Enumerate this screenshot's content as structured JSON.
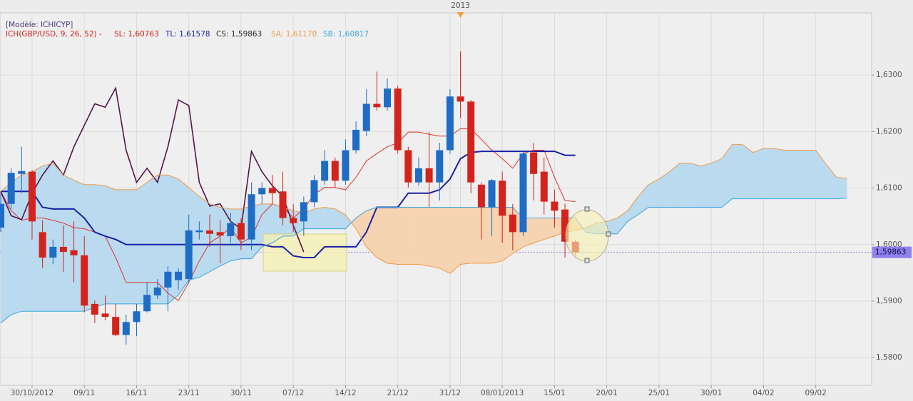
{
  "chart_data": {
    "type": "candlestick",
    "title": "[Modèle: ICHICYP]",
    "indicator": "ICH(GBP/USD, 9, 26, 52) -",
    "year_marker": {
      "value": 44,
      "label": "2013"
    },
    "xlim": [
      -0.07,
      83.35
    ],
    "ylim": [
      1.5751,
      1.641
    ],
    "grid": true,
    "xticks": [
      {
        "value": 3,
        "label": "30/10/2012"
      },
      {
        "value": 8,
        "label": "09/11"
      },
      {
        "value": 13,
        "label": "16/11"
      },
      {
        "value": 18,
        "label": "23/11"
      },
      {
        "value": 23,
        "label": "30/11"
      },
      {
        "value": 28,
        "label": "07/12"
      },
      {
        "value": 33,
        "label": "14/12"
      },
      {
        "value": 38,
        "label": "21/12"
      },
      {
        "value": 43,
        "label": "31/12"
      },
      {
        "value": 48,
        "label": "08/01/2013"
      },
      {
        "value": 53,
        "label": "15/01"
      },
      {
        "value": 58,
        "label": "20/01"
      },
      {
        "value": 63,
        "label": "25/01"
      },
      {
        "value": 68,
        "label": "30/01"
      },
      {
        "value": 73,
        "label": "04/02"
      },
      {
        "value": 78,
        "label": "09/02"
      }
    ],
    "yticks": [
      {
        "value": 1.58,
        "label": "1,5800"
      },
      {
        "value": 1.59,
        "label": "1,5900"
      },
      {
        "value": 1.6,
        "label": "1,6000"
      },
      {
        "value": 1.61,
        "label": "1,6100"
      },
      {
        "value": 1.62,
        "label": "1,6200"
      },
      {
        "value": 1.63,
        "label": "1,6300"
      }
    ],
    "last_price": {
      "value": 1.59863,
      "label": "1,59863",
      "color": "#8f80ee"
    },
    "candles": {
      "up_color": "#1f6cc6",
      "down_color": "#d3231c",
      "open": [
        1.603,
        1.6072,
        1.6125,
        1.6129,
        1.6022,
        1.5977,
        1.5996,
        1.599,
        1.5981,
        1.5895,
        1.5878,
        1.5872,
        1.584,
        1.5863,
        1.5882,
        1.591,
        1.5924,
        1.5937,
        1.5939,
        1.6022,
        1.6025,
        1.6022,
        1.6015,
        1.6038,
        1.6009,
        1.6089,
        1.61,
        1.6094,
        1.6047,
        1.6041,
        1.6075,
        1.6113,
        1.6148,
        1.6113,
        1.6167,
        1.6201,
        1.6249,
        1.6243,
        1.6276,
        1.6167,
        1.611,
        1.6135,
        1.611,
        1.6167,
        1.6262,
        1.6253,
        1.6106,
        1.6066,
        1.6113,
        1.6053,
        1.6022,
        1.6163,
        1.6129,
        1.6076,
        1.6062,
        1.6005
      ],
      "high": [
        1.6091,
        1.6135,
        1.6173,
        1.6132,
        1.6043,
        1.6009,
        1.6034,
        1.6041,
        1.6015,
        1.5901,
        1.591,
        1.5895,
        1.5876,
        1.5895,
        1.5933,
        1.5939,
        1.5962,
        1.5958,
        1.6053,
        1.6041,
        1.6053,
        1.6043,
        1.6056,
        1.6047,
        1.611,
        1.611,
        1.6123,
        1.6129,
        1.6072,
        1.6085,
        1.6123,
        1.6167,
        1.6154,
        1.6186,
        1.6218,
        1.6275,
        1.6306,
        1.6294,
        1.6281,
        1.6173,
        1.6154,
        1.6199,
        1.618,
        1.6275,
        1.6342,
        1.6256,
        1.611,
        1.6116,
        1.6129,
        1.6072,
        1.6167,
        1.618,
        1.6154,
        1.6097,
        1.6072,
        1.6009
      ],
      "low": [
        1.6022,
        1.6063,
        1.6091,
        1.6009,
        1.5958,
        1.5965,
        1.5952,
        1.5933,
        1.588,
        1.5861,
        1.5866,
        1.5838,
        1.5823,
        1.5838,
        1.588,
        1.5904,
        1.5882,
        1.592,
        1.5933,
        1.6009,
        1.5996,
        1.5967,
        1.6003,
        1.599,
        1.599,
        1.6072,
        1.6072,
        1.6034,
        1.6022,
        1.6015,
        1.6066,
        1.6106,
        1.6101,
        1.6106,
        1.6161,
        1.6192,
        1.6237,
        1.6237,
        1.6161,
        1.6101,
        1.6104,
        1.6066,
        1.6078,
        1.6161,
        1.6224,
        1.6091,
        1.6009,
        1.6015,
        1.6003,
        1.599,
        1.6015,
        1.6078,
        1.6053,
        1.603,
        1.5977,
        1.5981
      ],
      "close": [
        1.6072,
        1.6127,
        1.613,
        1.6041,
        1.5977,
        1.5996,
        1.5987,
        1.5981,
        1.5892,
        1.5876,
        1.5872,
        1.584,
        1.5863,
        1.5882,
        1.5911,
        1.5924,
        1.5952,
        1.5952,
        1.6025,
        1.6025,
        1.6019,
        1.6016,
        1.6038,
        1.6009,
        1.6089,
        1.61,
        1.6091,
        1.6047,
        1.6038,
        1.6075,
        1.6114,
        1.6148,
        1.6113,
        1.6167,
        1.6203,
        1.6249,
        1.6243,
        1.6276,
        1.6167,
        1.611,
        1.6135,
        1.611,
        1.6167,
        1.6262,
        1.6253,
        1.611,
        1.6066,
        1.6114,
        1.6051,
        1.6022,
        1.6161,
        1.6125,
        1.6076,
        1.606,
        1.6005,
        1.5986
      ]
    },
    "cloud": {
      "up_color": "#b9daef",
      "down_color": "#f6d3b1"
    },
    "series": [
      {
        "name": "SL: 1,60763",
        "color": "#e0332a",
        "width": 1,
        "values": [
          1.6094,
          1.606,
          1.6043,
          1.6047,
          1.6047,
          1.6043,
          1.6038,
          1.603,
          1.6028,
          1.6022,
          1.6015,
          1.5977,
          1.5933,
          1.5933,
          1.5933,
          1.5933,
          1.5914,
          1.5901,
          1.5933,
          1.5971,
          1.6003,
          1.6015,
          1.603,
          1.6003,
          1.6013,
          1.6053,
          1.6072,
          1.6066,
          1.6047,
          1.6063,
          1.6089,
          1.6101,
          1.6101,
          1.6097,
          1.6119,
          1.6148,
          1.6161,
          1.6173,
          1.618,
          1.6199,
          1.6199,
          1.6195,
          1.6192,
          1.6192,
          1.6205,
          1.6205,
          1.6186,
          1.6167,
          1.6152,
          1.6135,
          1.6161,
          1.6167,
          1.6167,
          1.6119,
          1.6078,
          1.6076,
          null,
          null,
          null,
          null,
          null,
          null,
          null,
          null,
          null,
          null,
          null,
          null,
          null,
          null,
          null,
          null,
          null,
          null,
          null,
          null,
          null,
          null,
          null,
          null,
          null,
          null
        ]
      },
      {
        "name": "TL: 1,61578",
        "color": "#1a20a6",
        "width": 2,
        "values": [
          1.6094,
          1.6094,
          1.6094,
          1.6094,
          1.6066,
          1.6063,
          1.6063,
          1.6063,
          1.6047,
          1.6022,
          1.6015,
          1.6009,
          1.6,
          1.6,
          1.6,
          1.6,
          1.6,
          1.6,
          1.6,
          1.6,
          1.6,
          1.6,
          1.6,
          1.6,
          1.6,
          1.6,
          1.5996,
          1.5996,
          1.598,
          1.5977,
          1.5977,
          1.5996,
          1.5996,
          1.5996,
          1.5996,
          1.6022,
          1.6066,
          1.6066,
          1.6066,
          1.6091,
          1.6091,
          1.6091,
          1.6097,
          1.6116,
          1.6152,
          1.6163,
          1.6165,
          1.6165,
          1.6165,
          1.6165,
          1.6165,
          1.6165,
          1.6165,
          1.6165,
          1.6158,
          1.6158,
          null,
          null,
          null,
          null,
          null,
          null,
          null,
          null,
          null,
          null,
          null,
          null,
          null,
          null,
          null,
          null,
          null,
          null,
          null,
          null,
          null,
          null,
          null,
          null,
          null,
          null
        ]
      },
      {
        "name": "CS: 1,59863",
        "color": "#571545",
        "width": 1.6,
        "values": [
          1.6094,
          1.6051,
          1.6044,
          1.6091,
          1.6123,
          1.6148,
          1.6123,
          1.6173,
          1.6211,
          1.6249,
          1.6243,
          1.6277,
          1.6167,
          1.611,
          1.6135,
          1.611,
          1.6173,
          1.6256,
          1.6246,
          1.611,
          1.6068,
          1.6072,
          1.6041,
          1.6028,
          1.6165,
          1.6129,
          1.6104,
          1.6085,
          1.6034,
          1.5987,
          null,
          null,
          null,
          null,
          null,
          null,
          null,
          null,
          null,
          null,
          null,
          null,
          null,
          null,
          null,
          null,
          null,
          null,
          null,
          null,
          null,
          null,
          null,
          null,
          null,
          null,
          null,
          null,
          null,
          null,
          null,
          null,
          null,
          null,
          null,
          null,
          null,
          null,
          null,
          null,
          null,
          null,
          null,
          null,
          null,
          null,
          null,
          null,
          null,
          null,
          null,
          null
        ]
      },
      {
        "name": "SA: 1,61170",
        "color": "#f09a48",
        "width": 1,
        "values": [
          1.6094,
          1.611,
          1.6123,
          1.6129,
          1.6139,
          1.6144,
          1.6123,
          1.6114,
          1.6106,
          1.6106,
          1.6104,
          1.6097,
          1.6097,
          1.6097,
          1.611,
          1.6123,
          1.6123,
          1.6116,
          1.6101,
          1.6085,
          1.6072,
          1.6066,
          1.6063,
          1.6063,
          1.6068,
          1.6072,
          1.6072,
          1.6066,
          1.606,
          1.6056,
          1.6063,
          1.6066,
          1.6063,
          1.6053,
          1.6028,
          1.5996,
          1.5977,
          1.5967,
          1.5965,
          1.5965,
          1.5965,
          1.5962,
          1.5958,
          1.5949,
          1.5965,
          1.5967,
          1.5967,
          1.5967,
          1.5971,
          1.5984,
          1.5996,
          1.6003,
          1.6009,
          1.6015,
          1.6022,
          1.6025,
          1.603,
          1.6038,
          1.6041,
          1.6047,
          1.606,
          1.6085,
          1.6106,
          1.6116,
          1.6129,
          1.6144,
          1.6144,
          1.6139,
          1.6144,
          1.6152,
          1.6177,
          1.6177,
          1.6163,
          1.617,
          1.617,
          1.6167,
          1.6167,
          1.6167,
          1.6167,
          1.6142,
          1.6119,
          1.6117
        ]
      },
      {
        "name": "SB: 1,60817",
        "color": "#3ba6de",
        "width": 1,
        "values": [
          1.5861,
          1.5876,
          1.5882,
          1.5882,
          1.5882,
          1.5882,
          1.5882,
          1.5882,
          1.5882,
          1.5889,
          1.5895,
          1.5895,
          1.5895,
          1.5895,
          1.5895,
          1.5895,
          1.5895,
          1.5911,
          1.5937,
          1.5942,
          1.5952,
          1.5962,
          1.5971,
          1.5975,
          1.5975,
          1.5996,
          1.6003,
          1.6015,
          1.6015,
          1.6028,
          1.6028,
          1.6028,
          1.6028,
          1.6028,
          1.6047,
          1.606,
          1.6066,
          1.6066,
          1.6066,
          1.6066,
          1.6066,
          1.6066,
          1.6066,
          1.6066,
          1.6066,
          1.6066,
          1.6066,
          1.6066,
          1.6066,
          1.6066,
          1.6047,
          1.6047,
          1.6047,
          1.6047,
          1.6047,
          1.6047,
          1.6022,
          1.6019,
          1.6019,
          1.6019,
          1.6041,
          1.6053,
          1.6066,
          1.6066,
          1.6066,
          1.6066,
          1.6066,
          1.6066,
          1.6066,
          1.6066,
          1.6081,
          1.6081,
          1.6081,
          1.6081,
          1.6081,
          1.6081,
          1.6081,
          1.6081,
          1.6081,
          1.6081,
          1.6081,
          1.6082
        ]
      }
    ]
  }
}
